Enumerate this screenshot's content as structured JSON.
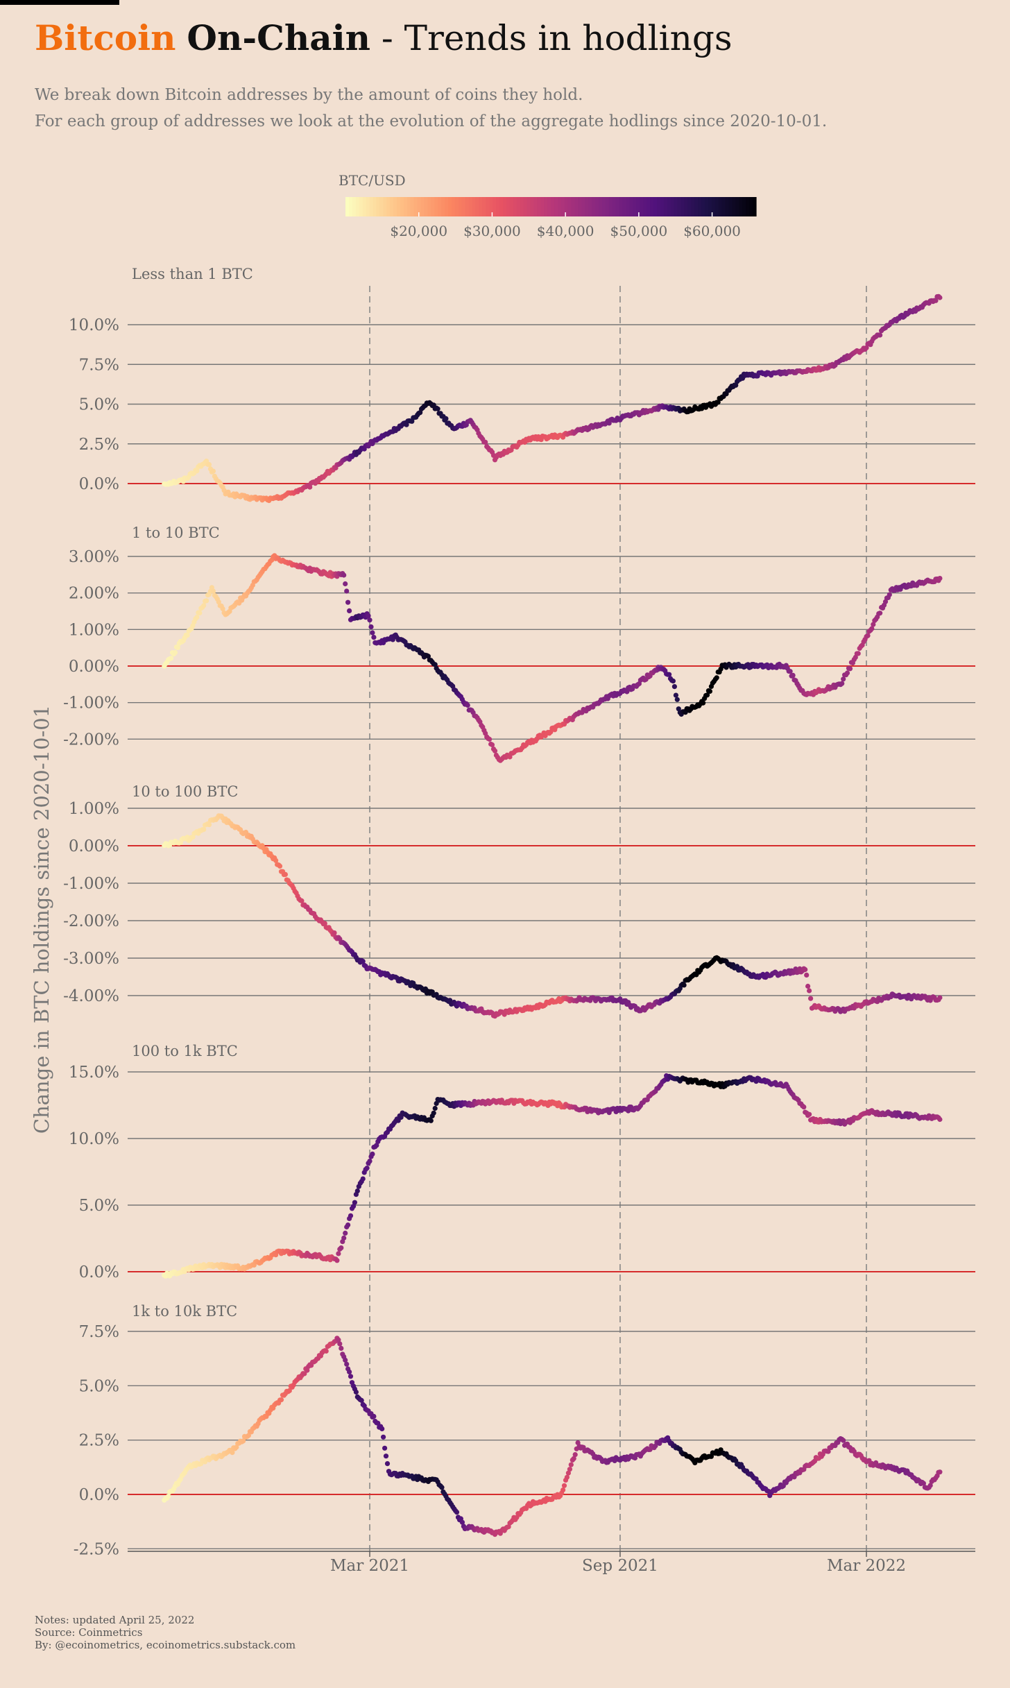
{
  "header": {
    "title_part1": "Bitcoin",
    "title_part2": "On-Chain",
    "title_part3": " - Trends in hodlings",
    "subtitle_line1": "We break down Bitcoin addresses by the amount of coins they hold.",
    "subtitle_line2": "For each group of addresses we look at the evolution of the aggregate hodlings since 2020-10-01."
  },
  "legend": {
    "title": "BTC/USD",
    "ticks": [
      "$20,000",
      "$30,000",
      "$40,000",
      "$50,000",
      "$60,000"
    ],
    "tick_values": [
      20000,
      30000,
      40000,
      50000,
      60000
    ],
    "range": [
      10000,
      66000
    ]
  },
  "colors": {
    "background": "#f2e0d1",
    "accent": "#f26d0f",
    "zero_line": "#d62b2b",
    "grid": "#777777",
    "palette": [
      "#fcfdbf",
      "#fec287",
      "#fb8761",
      "#e75263",
      "#b73779",
      "#832681",
      "#51127c",
      "#1d1147",
      "#000004"
    ]
  },
  "y_axis_title": "Change in BTC holdings since 2020-10-01",
  "chart_data": {
    "type": "scatter",
    "x_axis": {
      "range": [
        "2020-10-01",
        "2022-04-25"
      ],
      "tick_labels": [
        "Mar 2021",
        "Sep 2021",
        "Mar 2022"
      ],
      "tick_dates": [
        "2021-03-01",
        "2021-09-01",
        "2022-03-01"
      ]
    },
    "btc_price_keypoints": [
      [
        "2020-10-01",
        10800
      ],
      [
        "2020-11-01",
        13700
      ],
      [
        "2020-12-01",
        19000
      ],
      [
        "2021-01-01",
        29000
      ],
      [
        "2021-01-15",
        37000
      ],
      [
        "2021-02-01",
        33500
      ],
      [
        "2021-02-20",
        56000
      ],
      [
        "2021-03-01",
        49000
      ],
      [
        "2021-04-14",
        63000
      ],
      [
        "2021-05-01",
        57000
      ],
      [
        "2021-05-20",
        40000
      ],
      [
        "2021-06-22",
        32000
      ],
      [
        "2021-07-20",
        30000
      ],
      [
        "2021-08-01",
        41000
      ],
      [
        "2021-09-01",
        48000
      ],
      [
        "2021-09-25",
        42000
      ],
      [
        "2021-10-20",
        65000
      ],
      [
        "2021-11-10",
        68000
      ],
      [
        "2021-12-01",
        57000
      ],
      [
        "2022-01-01",
        46000
      ],
      [
        "2022-01-25",
        36000
      ],
      [
        "2022-02-10",
        44000
      ],
      [
        "2022-02-25",
        38000
      ],
      [
        "2022-03-28",
        47000
      ],
      [
        "2022-04-25",
        40000
      ]
    ],
    "panels": [
      {
        "label": "Less than 1 BTC",
        "ylim": [
          -0.4,
          11.8
        ],
        "yticks": [
          0,
          2.5,
          5,
          7.5,
          10
        ],
        "ytick_labels": [
          "0.0%",
          "2.5%",
          "5.0%",
          "7.5%",
          "10.0%"
        ],
        "series": [
          [
            "2020-10-01",
            0.0
          ],
          [
            "2020-10-15",
            0.2
          ],
          [
            "2020-11-01",
            1.4
          ],
          [
            "2020-11-15",
            -0.6
          ],
          [
            "2020-12-01",
            -0.9
          ],
          [
            "2020-12-20",
            -1.0
          ],
          [
            "2021-01-15",
            -0.2
          ],
          [
            "2021-02-10",
            1.4
          ],
          [
            "2021-03-01",
            2.5
          ],
          [
            "2021-04-01",
            4.0
          ],
          [
            "2021-04-14",
            5.2
          ],
          [
            "2021-05-01",
            3.5
          ],
          [
            "2021-05-15",
            3.9
          ],
          [
            "2021-06-01",
            1.6
          ],
          [
            "2021-06-25",
            2.8
          ],
          [
            "2021-07-20",
            3.0
          ],
          [
            "2021-09-01",
            4.1
          ],
          [
            "2021-10-01",
            4.8
          ],
          [
            "2021-10-20",
            4.6
          ],
          [
            "2021-11-10",
            5.0
          ],
          [
            "2021-12-01",
            6.8
          ],
          [
            "2022-01-01",
            7.0
          ],
          [
            "2022-02-01",
            7.3
          ],
          [
            "2022-03-01",
            8.6
          ],
          [
            "2022-03-20",
            10.2
          ],
          [
            "2022-04-25",
            11.8
          ]
        ]
      },
      {
        "label": "1 to 10 BTC",
        "ylim": [
          -2.8,
          3.05
        ],
        "yticks": [
          -2,
          -1,
          0,
          1,
          2,
          3
        ],
        "ytick_labels": [
          "-2.00%",
          "-1.00%",
          "0.00%",
          "1.00%",
          "2.00%",
          "3.00%"
        ],
        "series": [
          [
            "2020-10-01",
            0.0
          ],
          [
            "2020-10-20",
            1.0
          ],
          [
            "2020-11-05",
            2.1
          ],
          [
            "2020-11-15",
            1.4
          ],
          [
            "2020-12-01",
            2.0
          ],
          [
            "2020-12-20",
            3.0
          ],
          [
            "2021-01-10",
            2.7
          ],
          [
            "2021-02-01",
            2.5
          ],
          [
            "2021-02-10",
            2.5
          ],
          [
            "2021-02-15",
            1.3
          ],
          [
            "2021-02-28",
            1.4
          ],
          [
            "2021-03-05",
            0.6
          ],
          [
            "2021-03-20",
            0.8
          ],
          [
            "2021-04-14",
            0.2
          ],
          [
            "2021-05-01",
            -0.6
          ],
          [
            "2021-05-20",
            -1.5
          ],
          [
            "2021-06-05",
            -2.6
          ],
          [
            "2021-06-22",
            -2.2
          ],
          [
            "2021-07-20",
            -1.6
          ],
          [
            "2021-08-20",
            -0.9
          ],
          [
            "2021-09-10",
            -0.6
          ],
          [
            "2021-10-01",
            0.0
          ],
          [
            "2021-10-10",
            -0.4
          ],
          [
            "2021-10-15",
            -1.3
          ],
          [
            "2021-11-01",
            -1.0
          ],
          [
            "2021-11-15",
            0.0
          ],
          [
            "2022-01-01",
            0.0
          ],
          [
            "2022-01-15",
            -0.8
          ],
          [
            "2022-02-10",
            -0.5
          ],
          [
            "2022-03-01",
            0.8
          ],
          [
            "2022-03-20",
            2.1
          ],
          [
            "2022-04-25",
            2.4
          ]
        ]
      },
      {
        "label": "10 to 100 BTC",
        "ylim": [
          -4.6,
          1.15
        ],
        "yticks": [
          -4,
          -3,
          -2,
          -1,
          0,
          1
        ],
        "ytick_labels": [
          "-4.00%",
          "-3.00%",
          "-2.00%",
          "-1.00%",
          "0.00%",
          "1.00%"
        ],
        "series": [
          [
            "2020-10-01",
            0.0
          ],
          [
            "2020-10-20",
            0.2
          ],
          [
            "2020-11-10",
            0.8
          ],
          [
            "2020-12-01",
            0.3
          ],
          [
            "2020-12-20",
            -0.3
          ],
          [
            "2021-01-10",
            -1.5
          ],
          [
            "2021-02-01",
            -2.3
          ],
          [
            "2021-02-20",
            -3.0
          ],
          [
            "2021-03-01",
            -3.3
          ],
          [
            "2021-04-01",
            -3.7
          ],
          [
            "2021-05-01",
            -4.2
          ],
          [
            "2021-06-01",
            -4.5
          ],
          [
            "2021-07-01",
            -4.3
          ],
          [
            "2021-07-20",
            -4.1
          ],
          [
            "2021-09-01",
            -4.1
          ],
          [
            "2021-09-15",
            -4.4
          ],
          [
            "2021-10-10",
            -4.0
          ],
          [
            "2021-10-20",
            -3.6
          ],
          [
            "2021-11-10",
            -3.0
          ],
          [
            "2021-12-10",
            -3.5
          ],
          [
            "2022-01-15",
            -3.3
          ],
          [
            "2022-01-20",
            -4.3
          ],
          [
            "2022-02-10",
            -4.4
          ],
          [
            "2022-03-20",
            -4.0
          ],
          [
            "2022-04-25",
            -4.1
          ]
        ]
      },
      {
        "label": "100 to 1k BTC",
        "ylim": [
          -0.7,
          15.3
        ],
        "yticks": [
          0,
          5,
          10,
          15
        ],
        "ytick_labels": [
          "0.0%",
          "5.0%",
          "10.0%",
          "15.0%"
        ],
        "series": [
          [
            "2020-10-01",
            -0.3
          ],
          [
            "2020-11-01",
            0.5
          ],
          [
            "2020-12-01",
            0.3
          ],
          [
            "2020-12-25",
            1.5
          ],
          [
            "2021-01-20",
            1.2
          ],
          [
            "2021-02-05",
            0.9
          ],
          [
            "2021-02-20",
            6.0
          ],
          [
            "2021-03-05",
            9.5
          ],
          [
            "2021-03-25",
            11.8
          ],
          [
            "2021-04-15",
            11.4
          ],
          [
            "2021-04-20",
            13.0
          ],
          [
            "2021-05-01",
            12.5
          ],
          [
            "2021-06-01",
            12.8
          ],
          [
            "2021-07-15",
            12.6
          ],
          [
            "2021-08-15",
            12.0
          ],
          [
            "2021-09-15",
            12.3
          ],
          [
            "2021-10-05",
            14.6
          ],
          [
            "2021-10-25",
            14.3
          ],
          [
            "2021-11-15",
            14.0
          ],
          [
            "2021-12-05",
            14.5
          ],
          [
            "2022-01-01",
            14.0
          ],
          [
            "2022-01-20",
            11.4
          ],
          [
            "2022-02-15",
            11.2
          ],
          [
            "2022-03-01",
            12.0
          ],
          [
            "2022-04-25",
            11.5
          ]
        ]
      },
      {
        "label": "1k to 10k BTC",
        "ylim": [
          -2.5,
          7.6
        ],
        "yticks": [
          -2.5,
          0,
          2.5,
          5,
          7.5
        ],
        "ytick_labels": [
          "-2.5%",
          "0.0%",
          "2.5%",
          "5.0%",
          "7.5%"
        ],
        "series": [
          [
            "2020-10-01",
            -0.3
          ],
          [
            "2020-10-20",
            1.3
          ],
          [
            "2020-11-20",
            2.0
          ],
          [
            "2020-12-20",
            4.0
          ],
          [
            "2021-01-10",
            5.5
          ],
          [
            "2021-02-05",
            7.2
          ],
          [
            "2021-02-20",
            4.5
          ],
          [
            "2021-03-10",
            3.0
          ],
          [
            "2021-03-15",
            1.0
          ],
          [
            "2021-04-01",
            0.8
          ],
          [
            "2021-04-20",
            0.6
          ],
          [
            "2021-05-10",
            -1.5
          ],
          [
            "2021-06-05",
            -1.8
          ],
          [
            "2021-06-25",
            -0.5
          ],
          [
            "2021-07-20",
            0.0
          ],
          [
            "2021-08-01",
            2.3
          ],
          [
            "2021-08-20",
            1.5
          ],
          [
            "2021-09-15",
            1.8
          ],
          [
            "2021-10-05",
            2.6
          ],
          [
            "2021-10-25",
            1.5
          ],
          [
            "2021-11-15",
            2.0
          ],
          [
            "2021-12-05",
            1.0
          ],
          [
            "2021-12-20",
            0.0
          ],
          [
            "2022-01-10",
            1.0
          ],
          [
            "2022-02-10",
            2.5
          ],
          [
            "2022-03-01",
            1.5
          ],
          [
            "2022-04-01",
            1.0
          ],
          [
            "2022-04-15",
            0.3
          ],
          [
            "2022-04-25",
            1.1
          ]
        ]
      }
    ]
  },
  "notes": {
    "line1": "Notes: updated April 25, 2022",
    "line2": "Source: Coinmetrics",
    "line3": "By: @ecoinometrics, ecoinometrics.substack.com"
  }
}
